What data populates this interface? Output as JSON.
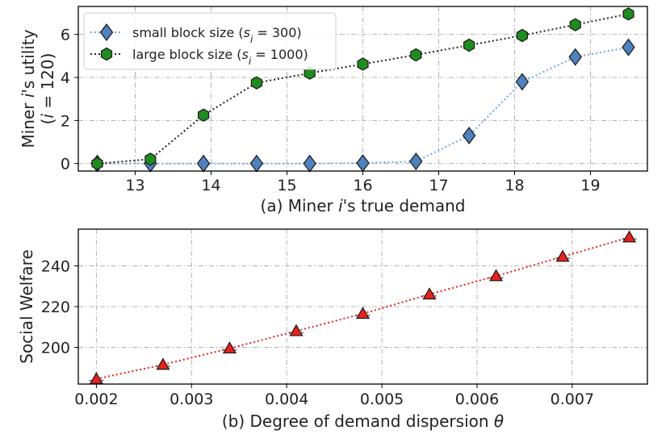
{
  "chart_data": [
    {
      "type": "line",
      "panel": "a",
      "xlabel_parts": [
        "(a) Miner ",
        "i",
        "'s true demand"
      ],
      "ylabel_line1_parts": [
        "Miner ",
        "i",
        "'s utility"
      ],
      "ylabel_line2_parts": [
        "(",
        "i",
        " = 120)"
      ],
      "xlim": [
        12.25,
        19.75
      ],
      "ylim": [
        -0.35,
        7.3
      ],
      "xticks": [
        13,
        14,
        15,
        16,
        17,
        18,
        19
      ],
      "yticks": [
        0,
        2,
        4,
        6
      ],
      "grid": true,
      "legend_position": "top-left",
      "series": [
        {
          "name": "small block size (s_i = 300)",
          "legend_parts": [
            "small block size (",
            "s",
            "i",
            " = 300)"
          ],
          "marker": "diamond",
          "color": "#4f81bd",
          "line_color": "#6fa8dc",
          "x": [
            12.5,
            13.2,
            13.9,
            14.6,
            15.3,
            16.0,
            16.7,
            17.4,
            18.1,
            18.8,
            19.5
          ],
          "values": [
            0.0,
            0.0,
            0.0,
            0.0,
            0.0,
            0.02,
            0.1,
            1.3,
            3.8,
            4.95,
            5.4
          ]
        },
        {
          "name": "large block size (s_i = 1000)",
          "legend_parts": [
            "large block size (",
            "s",
            "i",
            " = 1000)"
          ],
          "marker": "hexagon",
          "color": "#1e8c1e",
          "line_color": "#222222",
          "x": [
            12.5,
            13.2,
            13.9,
            14.6,
            15.3,
            16.0,
            16.7,
            17.4,
            18.1,
            18.8,
            19.5
          ],
          "values": [
            0.0,
            0.2,
            2.25,
            3.75,
            4.2,
            4.62,
            5.05,
            5.5,
            5.95,
            6.45,
            6.95
          ]
        }
      ]
    },
    {
      "type": "line",
      "panel": "b",
      "xlabel_parts": [
        "(b) Degree of demand dispersion ",
        "θ"
      ],
      "ylabel": "Social Welfare",
      "xlim": [
        0.00181,
        0.00779
      ],
      "ylim": [
        182,
        258
      ],
      "xticks": [
        0.002,
        0.003,
        0.004,
        0.005,
        0.006,
        0.007
      ],
      "xtick_labels": [
        "0.002",
        "0.003",
        "0.004",
        "0.005",
        "0.006",
        "0.007"
      ],
      "yticks": [
        200,
        220,
        240
      ],
      "grid": true,
      "series": [
        {
          "name": "social welfare",
          "marker": "triangle",
          "color": "#e8211c",
          "line_color": "#e8211c",
          "x": [
            0.002,
            0.0027,
            0.0034,
            0.0041,
            0.0048,
            0.0055,
            0.0062,
            0.0069,
            0.0076
          ],
          "values": [
            184.5,
            191.5,
            199.5,
            208,
            216.5,
            226,
            235,
            244.5,
            254
          ]
        }
      ]
    }
  ]
}
